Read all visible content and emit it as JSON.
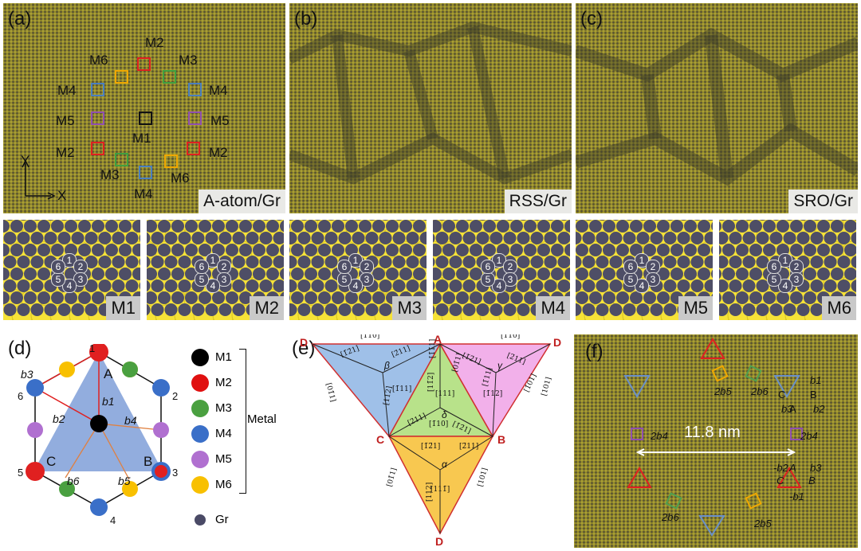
{
  "panels": {
    "a": "(a)",
    "b": "(b)",
    "c": "(c)",
    "d": "(d)",
    "e": "(e)",
    "f": "(f)"
  },
  "tags": {
    "a": "A-atom/Gr",
    "b": "RSS/Gr",
    "c": "SRO/Gr"
  },
  "axes": {
    "y": "Y",
    "x": "X"
  },
  "markers": [
    {
      "label": "M2",
      "color": "#e02020"
    },
    {
      "label": "M6",
      "color": "#f0a800"
    },
    {
      "label": "M3",
      "color": "#40a040"
    },
    {
      "label": "M4",
      "color": "#4a7fc0"
    },
    {
      "label": "M4",
      "color": "#4a7fc0"
    },
    {
      "label": "M5",
      "color": "#9050b0"
    },
    {
      "label": "M1",
      "color": "#111111"
    },
    {
      "label": "M5",
      "color": "#9050b0"
    },
    {
      "label": "M2",
      "color": "#e02020"
    },
    {
      "label": "M2",
      "color": "#e02020"
    },
    {
      "label": "M3",
      "color": "#40a040"
    },
    {
      "label": "M6",
      "color": "#f0a800"
    },
    {
      "label": "M4",
      "color": "#4a7fc0"
    }
  ],
  "subpanels": [
    "M1",
    "M2",
    "M3",
    "M4",
    "M5",
    "M6"
  ],
  "site_numbers": [
    "1",
    "2",
    "3",
    "4",
    "5",
    "6"
  ],
  "legend": {
    "items": [
      {
        "label": "M1",
        "color": "#000000"
      },
      {
        "label": "M2",
        "color": "#e01010"
      },
      {
        "label": "M3",
        "color": "#4aa040"
      },
      {
        "label": "M4",
        "color": "#3a6fc8"
      },
      {
        "label": "M5",
        "color": "#b070d0"
      },
      {
        "label": "M6",
        "color": "#f8c000"
      }
    ],
    "group": "Metal",
    "gr": {
      "label": "Gr",
      "color": "#4a4a66"
    }
  },
  "hex": {
    "vertices": [
      "1",
      "2",
      "3",
      "4",
      "5",
      "6"
    ],
    "triangle": [
      "A",
      "B",
      "C"
    ],
    "bonds": [
      "b1",
      "b2",
      "b3",
      "b4",
      "b5",
      "b6"
    ]
  },
  "triangle_e": {
    "corners": [
      "A",
      "B",
      "C",
      "D",
      "D",
      "D"
    ],
    "greek": [
      "β",
      "γ",
      "δ",
      "α"
    ],
    "directions": [
      "[1̄10]",
      "[1̄10]",
      "[1̄2̄1]",
      "[2̄11]",
      "[1̄2̄1]",
      "[2̄11]",
      "[01̄1]",
      "[1̄11]",
      "[11̄2]",
      "[1̄01]",
      "[1̄1̄1]",
      "[1̄12]",
      "[01̄1]",
      "[1̄11]",
      "[11̄2]",
      "[101]",
      "[111]",
      "[2̄11]",
      "[1̄2̄1]",
      "[1̄10]",
      "[1̄2̄1]",
      "[2̄11]",
      "[01̄1]",
      "[111̄]",
      "[112]",
      "[101]"
    ]
  },
  "f": {
    "distance": "11.8 nm",
    "labels": [
      "2b5",
      "2b6",
      "2b4",
      "2b4",
      "2b6",
      "2b5",
      "A",
      "B",
      "C",
      "b1",
      "b2",
      "b3",
      "A",
      "B",
      "C",
      "-b1",
      "-b2",
      "b3"
    ]
  }
}
